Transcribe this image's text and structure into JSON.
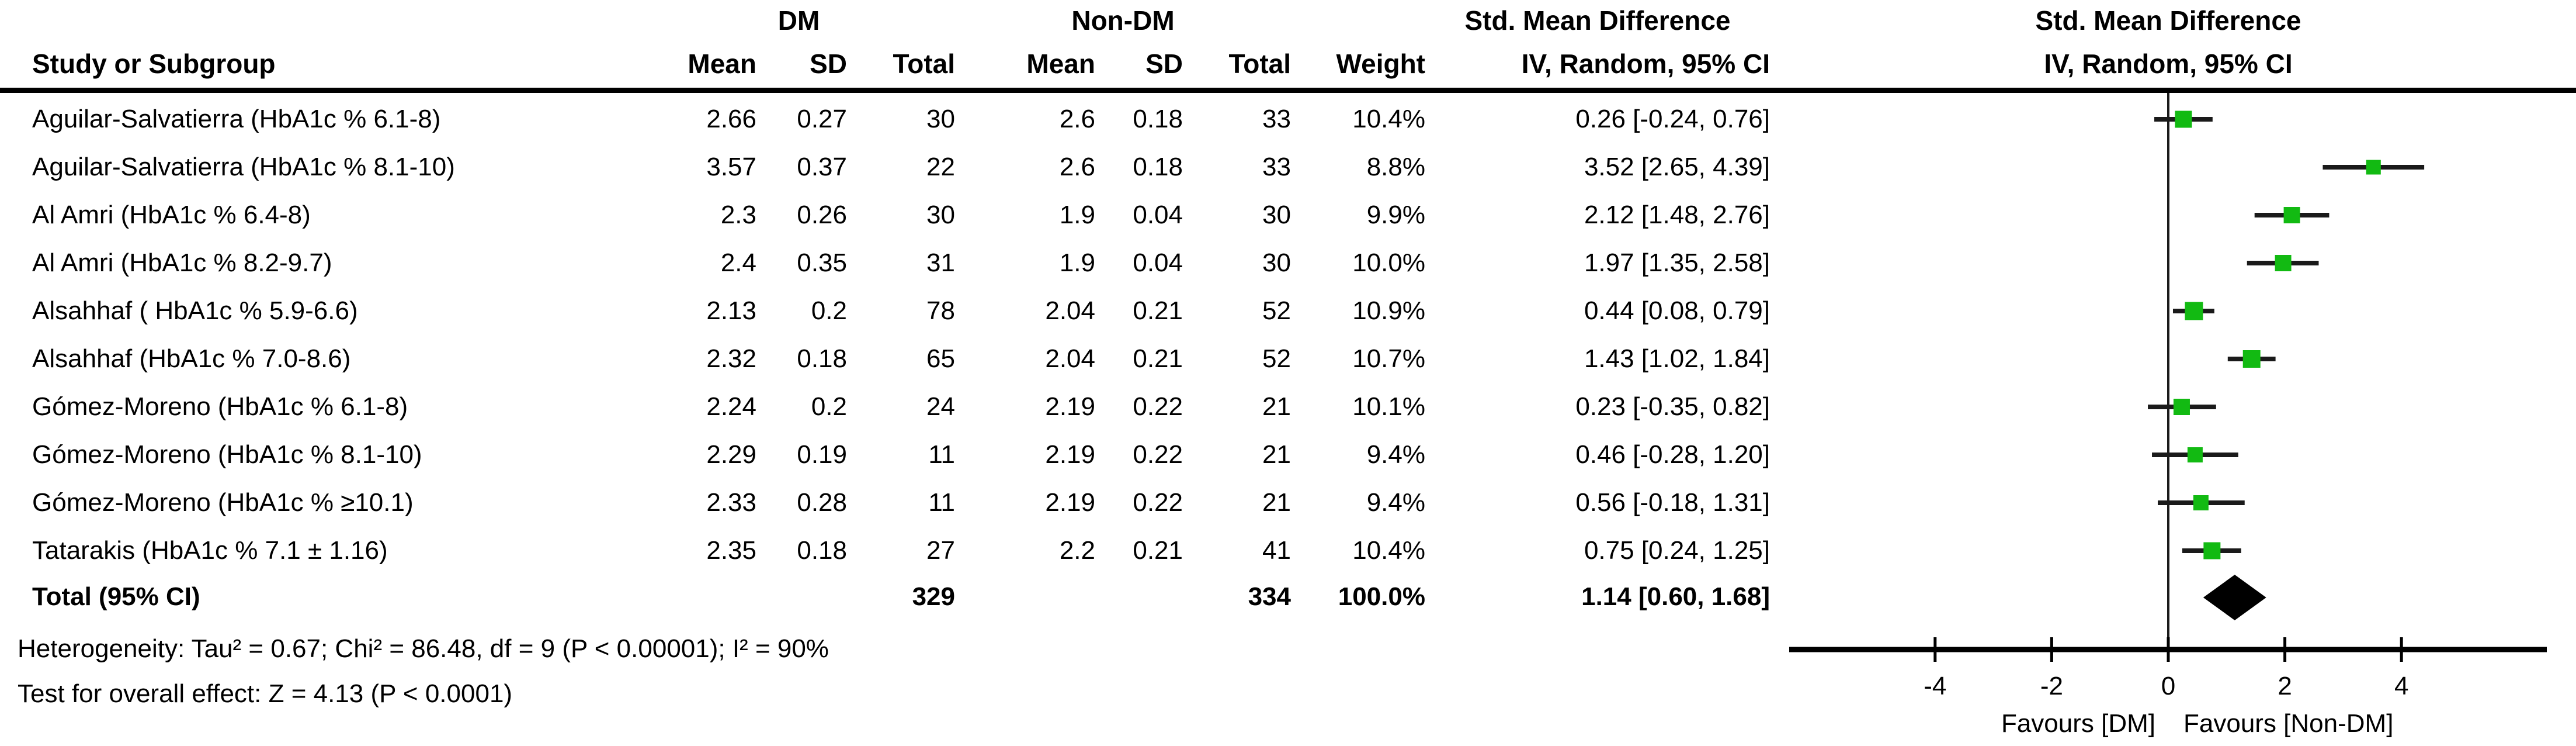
{
  "header": {
    "study_col": "Study or Subgroup",
    "group_dm": "DM",
    "group_non_dm": "Non-DM",
    "cols": {
      "mean": "Mean",
      "sd": "SD",
      "total": "Total",
      "weight": "Weight"
    },
    "smd_title": "Std. Mean Difference",
    "smd_subtitle": "IV, Random, 95% CI",
    "plot_title": "Std. Mean Difference",
    "plot_subtitle": "IV, Random, 95% CI"
  },
  "chart_data": {
    "type": "forest",
    "x_ticks": [
      -4,
      -2,
      0,
      2,
      4
    ],
    "x_range": [
      -6.5,
      6.5
    ],
    "favours_left": "Favours [DM]",
    "favours_right": "Favours [Non-DM]",
    "marker_color": "#12ba12",
    "line_color": "#1a1a1a",
    "studies": [
      {
        "name": "Aguilar-Salvatierra (HbA1c % 6.1-8)",
        "mean_dm": "2.66",
        "sd_dm": "0.27",
        "n_dm": "30",
        "mean_ndm": "2.6",
        "sd_ndm": "0.18",
        "n_ndm": "33",
        "weight": "10.4%",
        "weight_num": 10.4,
        "ci_text": "0.26 [-0.24, 0.76]",
        "est": 0.26,
        "lo": -0.24,
        "hi": 0.76
      },
      {
        "name": "Aguilar-Salvatierra (HbA1c % 8.1-10)",
        "mean_dm": "3.57",
        "sd_dm": "0.37",
        "n_dm": "22",
        "mean_ndm": "2.6",
        "sd_ndm": "0.18",
        "n_ndm": "33",
        "weight": "8.8%",
        "weight_num": 8.8,
        "ci_text": "3.52 [2.65, 4.39]",
        "est": 3.52,
        "lo": 2.65,
        "hi": 4.39
      },
      {
        "name": "Al Amri (HbA1c % 6.4-8)",
        "mean_dm": "2.3",
        "sd_dm": "0.26",
        "n_dm": "30",
        "mean_ndm": "1.9",
        "sd_ndm": "0.04",
        "n_ndm": "30",
        "weight": "9.9%",
        "weight_num": 9.9,
        "ci_text": "2.12 [1.48, 2.76]",
        "est": 2.12,
        "lo": 1.48,
        "hi": 2.76
      },
      {
        "name": "Al Amri (HbA1c % 8.2-9.7)",
        "mean_dm": "2.4",
        "sd_dm": "0.35",
        "n_dm": "31",
        "mean_ndm": "1.9",
        "sd_ndm": "0.04",
        "n_ndm": "30",
        "weight": "10.0%",
        "weight_num": 10.0,
        "ci_text": "1.97 [1.35, 2.58]",
        "est": 1.97,
        "lo": 1.35,
        "hi": 2.58
      },
      {
        "name": "Alsahhaf ( HbA1c % 5.9-6.6)",
        "mean_dm": "2.13",
        "sd_dm": "0.2",
        "n_dm": "78",
        "mean_ndm": "2.04",
        "sd_ndm": "0.21",
        "n_ndm": "52",
        "weight": "10.9%",
        "weight_num": 10.9,
        "ci_text": "0.44 [0.08, 0.79]",
        "est": 0.44,
        "lo": 0.08,
        "hi": 0.79
      },
      {
        "name": "Alsahhaf (HbA1c % 7.0-8.6)",
        "mean_dm": "2.32",
        "sd_dm": "0.18",
        "n_dm": "65",
        "mean_ndm": "2.04",
        "sd_ndm": "0.21",
        "n_ndm": "52",
        "weight": "10.7%",
        "weight_num": 10.7,
        "ci_text": "1.43 [1.02, 1.84]",
        "est": 1.43,
        "lo": 1.02,
        "hi": 1.84
      },
      {
        "name": "Gómez-Moreno  (HbA1c % 6.1-8)",
        "mean_dm": "2.24",
        "sd_dm": "0.2",
        "n_dm": "24",
        "mean_ndm": "2.19",
        "sd_ndm": "0.22",
        "n_ndm": "21",
        "weight": "10.1%",
        "weight_num": 10.1,
        "ci_text": "0.23 [-0.35, 0.82]",
        "est": 0.23,
        "lo": -0.35,
        "hi": 0.82
      },
      {
        "name": "Gómez-Moreno (HbA1c % 8.1-10)",
        "mean_dm": "2.29",
        "sd_dm": "0.19",
        "n_dm": "11",
        "mean_ndm": "2.19",
        "sd_ndm": "0.22",
        "n_ndm": "21",
        "weight": "9.4%",
        "weight_num": 9.4,
        "ci_text": "0.46 [-0.28, 1.20]",
        "est": 0.46,
        "lo": -0.28,
        "hi": 1.2
      },
      {
        "name": "Gómez-Moreno (HbA1c % ≥10.1)",
        "mean_dm": "2.33",
        "sd_dm": "0.28",
        "n_dm": "11",
        "mean_ndm": "2.19",
        "sd_ndm": "0.22",
        "n_ndm": "21",
        "weight": "9.4%",
        "weight_num": 9.4,
        "ci_text": "0.56 [-0.18, 1.31]",
        "est": 0.56,
        "lo": -0.18,
        "hi": 1.31
      },
      {
        "name": "Tatarakis  (HbA1c %  7.1 ± 1.16)",
        "mean_dm": "2.35",
        "sd_dm": "0.18",
        "n_dm": "27",
        "mean_ndm": "2.2",
        "sd_ndm": "0.21",
        "n_ndm": "41",
        "weight": "10.4%",
        "weight_num": 10.4,
        "ci_text": "0.75 [0.24, 1.25]",
        "est": 0.75,
        "lo": 0.24,
        "hi": 1.25
      }
    ],
    "total": {
      "label": "Total (95% CI)",
      "n_dm": "329",
      "n_ndm": "334",
      "weight": "100.0%",
      "ci_text": "1.14 [0.60, 1.68]",
      "est": 1.14,
      "lo": 0.6,
      "hi": 1.68
    }
  },
  "footnotes": {
    "heterogeneity": "Heterogeneity: Tau² = 0.67; Chi² = 86.48, df = 9 (P < 0.00001); I² = 90%",
    "overall_effect": "Test for overall effect: Z = 4.13 (P < 0.0001)"
  }
}
